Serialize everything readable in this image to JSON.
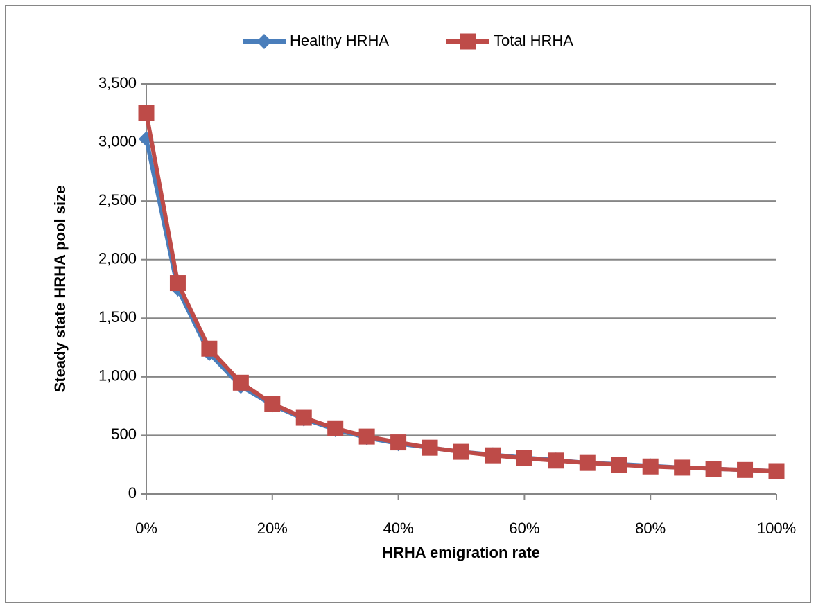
{
  "chart_data": {
    "type": "line",
    "x_label": "HRHA emigration rate",
    "y_label": "Steady state HRHA pool size",
    "x": [
      0,
      5,
      10,
      15,
      20,
      25,
      30,
      35,
      40,
      45,
      50,
      55,
      60,
      65,
      70,
      75,
      80,
      85,
      90,
      95,
      100
    ],
    "series": [
      {
        "name": "Healthy HRHA",
        "color": "#4a7ebb",
        "marker": "diamond",
        "values": [
          3030,
          1750,
          1200,
          920,
          760,
          640,
          550,
          480,
          430,
          395,
          360,
          335,
          310,
          290,
          265,
          255,
          240,
          225,
          215,
          205,
          195
        ]
      },
      {
        "name": "Total HRHA",
        "color": "#be4b48",
        "marker": "square",
        "values": [
          3250,
          1800,
          1240,
          950,
          770,
          650,
          560,
          490,
          440,
          395,
          360,
          330,
          305,
          285,
          265,
          250,
          235,
          225,
          215,
          205,
          195
        ]
      }
    ],
    "xlim": [
      0,
      100
    ],
    "xticks": [
      {
        "value": 0,
        "label": "0%"
      },
      {
        "value": 20,
        "label": "20%"
      },
      {
        "value": 40,
        "label": "40%"
      },
      {
        "value": 60,
        "label": "60%"
      },
      {
        "value": 80,
        "label": "80%"
      },
      {
        "value": 100,
        "label": "100%"
      }
    ],
    "ylim": [
      0,
      3500
    ],
    "yticks": [
      0,
      500,
      {
        "value": 1000,
        "label": "1,000"
      },
      {
        "value": 1500,
        "label": "1,500"
      },
      {
        "value": 2000,
        "label": "2,000"
      },
      {
        "value": 2500,
        "label": "2,500"
      },
      {
        "value": 3000,
        "label": "3,000"
      },
      {
        "value": 3500,
        "label": "3,500"
      }
    ],
    "grid": true,
    "legend": "top"
  }
}
